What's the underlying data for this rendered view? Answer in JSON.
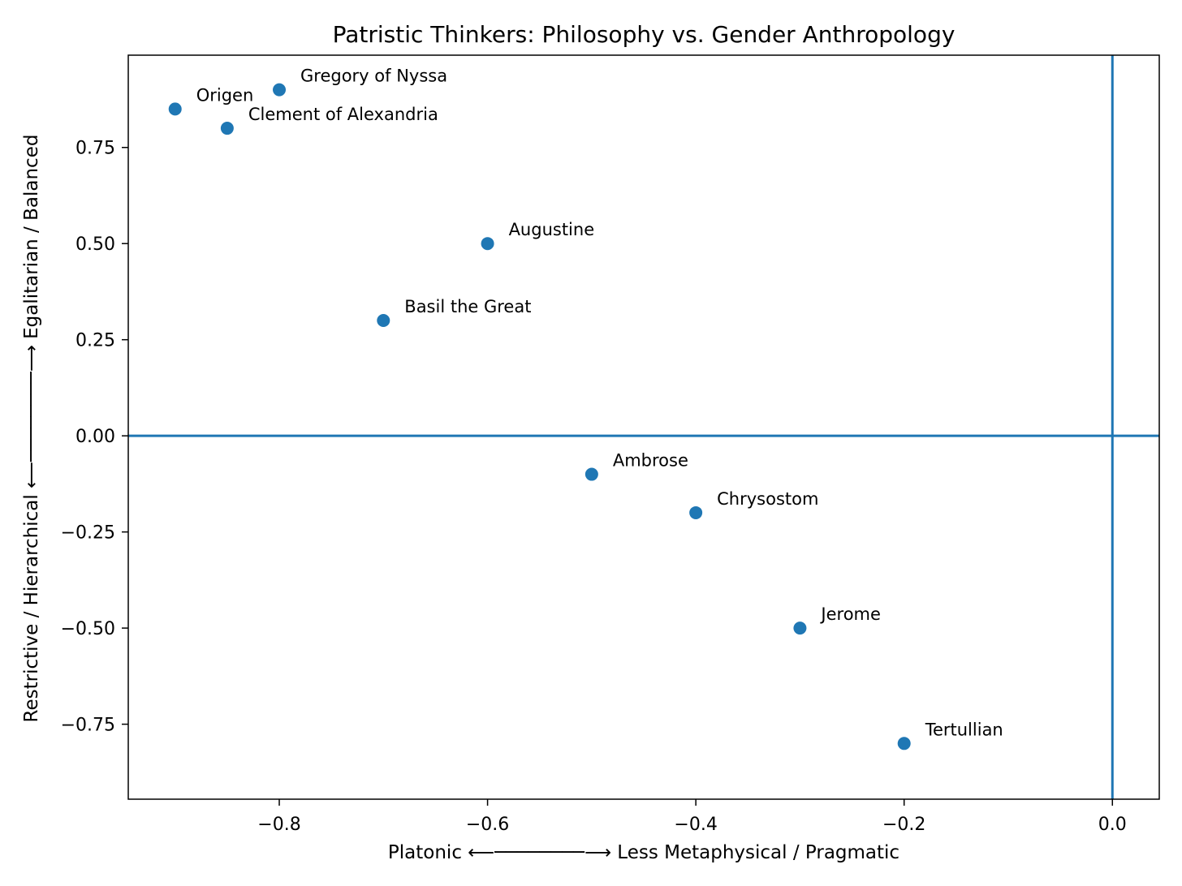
{
  "chart_data": {
    "type": "scatter",
    "title": "Patristic Thinkers: Philosophy vs. Gender Anthropology",
    "xlabel": "Platonic  ⟵────────⟶  Less Metaphysical / Pragmatic",
    "ylabel": "Restrictive / Hierarchical  ⟵────────⟶  Egalitarian / Balanced",
    "xlim": [
      -0.945,
      0.045
    ],
    "ylim": [
      -0.945,
      0.99
    ],
    "xticks": [
      -0.8,
      -0.6,
      -0.4,
      -0.2,
      0.0
    ],
    "xtick_labels": [
      "−0.8",
      "−0.6",
      "−0.4",
      "−0.2",
      "0.0"
    ],
    "yticks": [
      -0.75,
      -0.5,
      -0.25,
      0.0,
      0.25,
      0.5,
      0.75
    ],
    "ytick_labels": [
      "−0.75",
      "−0.50",
      "−0.25",
      "0.00",
      "0.25",
      "0.50",
      "0.75"
    ],
    "reference_lines": {
      "x": 0,
      "y": 0
    },
    "grid": false,
    "color": "#1f77b4",
    "points": [
      {
        "label": "Origen",
        "x": -0.9,
        "y": 0.85
      },
      {
        "label": "Gregory of Nyssa",
        "x": -0.8,
        "y": 0.9
      },
      {
        "label": "Clement of Alexandria",
        "x": -0.85,
        "y": 0.8
      },
      {
        "label": "Augustine",
        "x": -0.6,
        "y": 0.5
      },
      {
        "label": "Basil the Great",
        "x": -0.7,
        "y": 0.3
      },
      {
        "label": "Ambrose",
        "x": -0.5,
        "y": -0.1
      },
      {
        "label": "Chrysostom",
        "x": -0.4,
        "y": -0.2
      },
      {
        "label": "Jerome",
        "x": -0.3,
        "y": -0.5
      },
      {
        "label": "Tertullian",
        "x": -0.2,
        "y": -0.8
      }
    ]
  }
}
